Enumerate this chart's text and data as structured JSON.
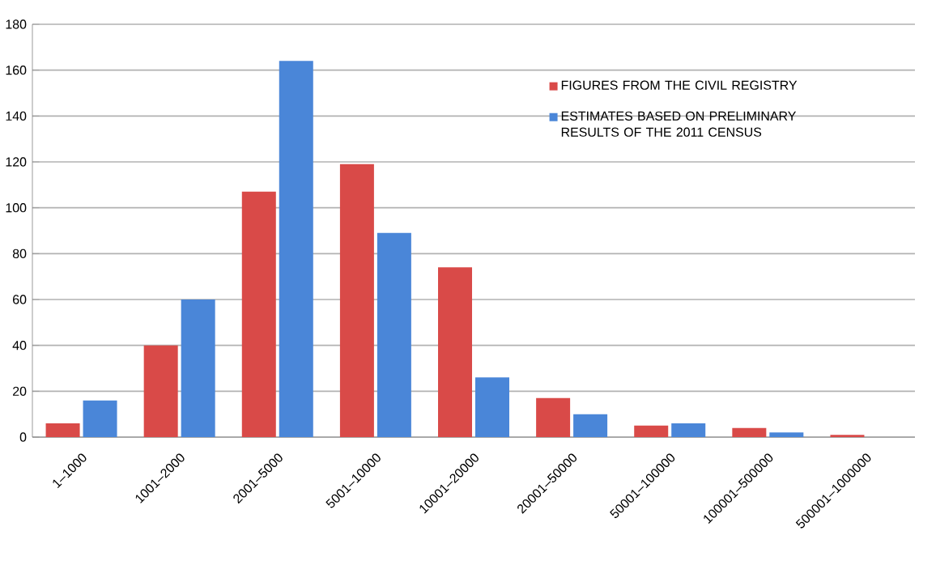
{
  "chart_data": {
    "type": "bar",
    "categories": [
      "1–1000",
      "1001–2000",
      "2001–5000",
      "5001–10000",
      "10001–20000",
      "20001–50000",
      "50001–100000",
      "100001–500000",
      "500001–1000000"
    ],
    "series": [
      {
        "name": "FIGURES FROM THE CIVIL REGISTRY",
        "color": "#d94a48",
        "values": [
          6,
          40,
          107,
          119,
          74,
          17,
          5,
          4,
          1
        ]
      },
      {
        "name": "ESTIMATES BASED ON PRELIMINARY RESULTS OF THE 2011 CENSUS",
        "color": "#4a86d8",
        "values": [
          16,
          60,
          164,
          89,
          26,
          10,
          6,
          2,
          0
        ]
      }
    ],
    "ylim": [
      0,
      180
    ],
    "yticks": [
      0,
      20,
      40,
      60,
      80,
      100,
      120,
      140,
      160,
      180
    ],
    "grid": "y",
    "legend": "top right"
  }
}
